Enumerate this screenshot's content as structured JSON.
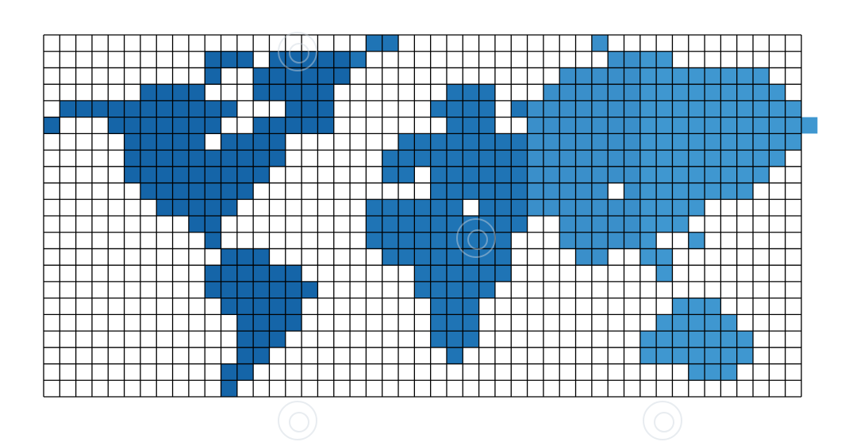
{
  "map": {
    "type": "pixel-world-map",
    "grid": {
      "columns": 47,
      "rows": 22
    },
    "colors": {
      "grid_line": "#000000",
      "background": "#ffffff",
      "land_americas": "#1565a8",
      "land_eurasia": "#3a8fca",
      "land_africa": "#1f74b5",
      "land_oceania": "#3f97d0"
    },
    "land_rows": [
      "...................................",
      ".........................",
      "...",
      "",
      "",
      "",
      "",
      "",
      "",
      "",
      "",
      "",
      "",
      "",
      "",
      "",
      "",
      "",
      "",
      "",
      "",
      ""
    ],
    "cells": [
      "..........................................................",
      "..............................................",
      "...........................",
      "",
      "",
      "",
      "",
      "",
      "",
      "",
      "",
      "",
      "",
      "",
      "",
      "",
      "",
      "",
      "",
      "",
      "",
      ""
    ]
  }
}
